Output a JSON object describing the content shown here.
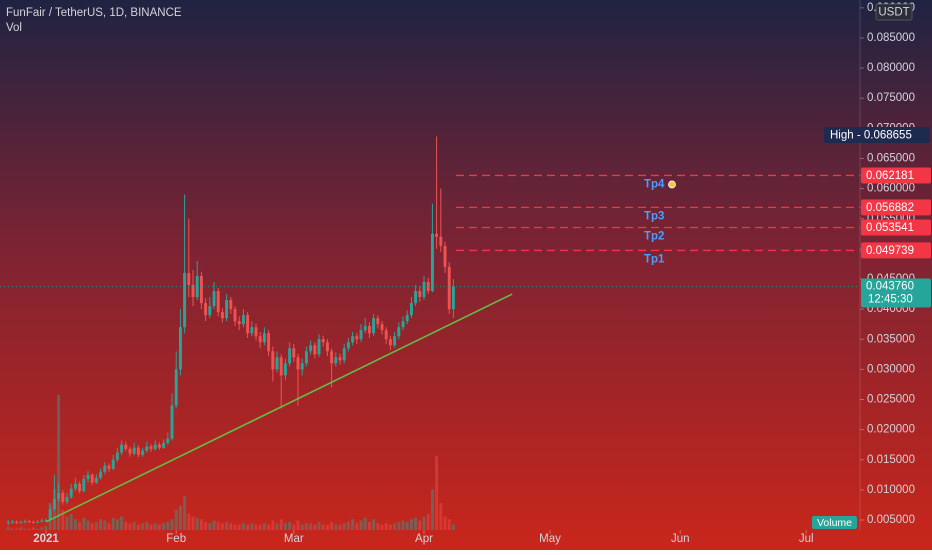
{
  "header": {
    "symbol": "FunFair / TetherUS, 1D, BINANCE",
    "indicator": "Vol",
    "currency": "USDT"
  },
  "chart_data": {
    "type": "candlestick",
    "open": [
      0.0045,
      0.0046,
      0.0047,
      0.0045,
      0.0046,
      0.0048,
      0.0047,
      0.0046,
      0.0047,
      0.0049,
      0.005,
      0.0068,
      0.0085,
      0.0095,
      0.008,
      0.0088,
      0.0102,
      0.011,
      0.0098,
      0.0118,
      0.0125,
      0.0112,
      0.012,
      0.013,
      0.014,
      0.0135,
      0.015,
      0.0162,
      0.0175,
      0.0168,
      0.016,
      0.017,
      0.0158,
      0.0165,
      0.0172,
      0.0168,
      0.0175,
      0.017,
      0.0178,
      0.0185,
      0.024,
      0.03,
      0.037,
      0.046,
      0.044,
      0.042,
      0.0455,
      0.041,
      0.039,
      0.0405,
      0.043,
      0.0395,
      0.0385,
      0.0415,
      0.04,
      0.038,
      0.0375,
      0.039,
      0.036,
      0.037,
      0.0355,
      0.0345,
      0.036,
      0.033,
      0.03,
      0.032,
      0.029,
      0.031,
      0.0335,
      0.032,
      0.03,
      0.031,
      0.033,
      0.034,
      0.0325,
      0.035,
      0.0345,
      0.033,
      0.031,
      0.032,
      0.0315,
      0.0335,
      0.0345,
      0.0355,
      0.035,
      0.0365,
      0.0372,
      0.036,
      0.0385,
      0.0375,
      0.0365,
      0.035,
      0.034,
      0.0355,
      0.037,
      0.038,
      0.039,
      0.041,
      0.043,
      0.042,
      0.0445,
      0.043,
      0.0525,
      0.052,
      0.0505,
      0.047,
      0.04
    ],
    "high": [
      0.005,
      0.005,
      0.0049,
      0.0049,
      0.0051,
      0.005,
      0.0049,
      0.005,
      0.0052,
      0.0053,
      0.0075,
      0.0125,
      0.011,
      0.01,
      0.0095,
      0.011,
      0.012,
      0.0114,
      0.0125,
      0.0132,
      0.0128,
      0.0126,
      0.0136,
      0.0146,
      0.0144,
      0.0158,
      0.017,
      0.0182,
      0.018,
      0.0172,
      0.0178,
      0.0174,
      0.017,
      0.018,
      0.0176,
      0.0182,
      0.0179,
      0.0184,
      0.0195,
      0.026,
      0.033,
      0.04,
      0.059,
      0.055,
      0.0465,
      0.048,
      0.0462,
      0.0418,
      0.042,
      0.0445,
      0.0435,
      0.0402,
      0.0425,
      0.042,
      0.0405,
      0.0388,
      0.04,
      0.0395,
      0.038,
      0.0376,
      0.0362,
      0.037,
      0.0365,
      0.0338,
      0.033,
      0.0325,
      0.0318,
      0.0345,
      0.0342,
      0.0326,
      0.0318,
      0.0338,
      0.0348,
      0.0345,
      0.0358,
      0.0356,
      0.035,
      0.0335,
      0.0328,
      0.0326,
      0.0342,
      0.0352,
      0.0362,
      0.036,
      0.0375,
      0.0385,
      0.0378,
      0.0392,
      0.039,
      0.038,
      0.037,
      0.0356,
      0.0362,
      0.0378,
      0.0388,
      0.0398,
      0.042,
      0.044,
      0.0438,
      0.0455,
      0.0452,
      0.0575,
      0.068655,
      0.06,
      0.0512,
      0.0478,
      0.045
    ],
    "low": [
      0.0042,
      0.0044,
      0.0043,
      0.0044,
      0.0045,
      0.0045,
      0.0044,
      0.0045,
      0.0046,
      0.0047,
      0.0049,
      0.0065,
      0.008,
      0.0075,
      0.0076,
      0.0085,
      0.0098,
      0.0094,
      0.0096,
      0.0112,
      0.0108,
      0.011,
      0.0117,
      0.0126,
      0.013,
      0.0133,
      0.0146,
      0.0158,
      0.0164,
      0.0155,
      0.0157,
      0.0154,
      0.0155,
      0.0162,
      0.0163,
      0.0165,
      0.0166,
      0.0168,
      0.0175,
      0.0182,
      0.0235,
      0.029,
      0.036,
      0.042,
      0.0405,
      0.0415,
      0.04,
      0.038,
      0.0385,
      0.04,
      0.0388,
      0.0378,
      0.038,
      0.0392,
      0.0372,
      0.0365,
      0.037,
      0.0352,
      0.0355,
      0.0348,
      0.0335,
      0.034,
      0.0322,
      0.028,
      0.0295,
      0.0235,
      0.0282,
      0.0305,
      0.0312,
      0.024,
      0.029,
      0.0305,
      0.0325,
      0.0318,
      0.032,
      0.0338,
      0.0322,
      0.027,
      0.0305,
      0.0308,
      0.031,
      0.033,
      0.034,
      0.0342,
      0.0346,
      0.036,
      0.0352,
      0.0356,
      0.0368,
      0.0358,
      0.0342,
      0.0332,
      0.0336,
      0.035,
      0.0365,
      0.0375,
      0.0385,
      0.0405,
      0.0412,
      0.0415,
      0.0425,
      0.0428,
      0.05,
      0.0495,
      0.046,
      0.0392,
      0.0385
    ],
    "close": [
      0.0046,
      0.0047,
      0.0045,
      0.0046,
      0.0048,
      0.0047,
      0.0046,
      0.0047,
      0.0049,
      0.005,
      0.0068,
      0.0085,
      0.0095,
      0.008,
      0.0088,
      0.0102,
      0.011,
      0.0098,
      0.0118,
      0.0125,
      0.0112,
      0.012,
      0.013,
      0.014,
      0.0135,
      0.015,
      0.0162,
      0.0175,
      0.0168,
      0.016,
      0.017,
      0.0158,
      0.0165,
      0.0172,
      0.0168,
      0.0175,
      0.017,
      0.0178,
      0.0185,
      0.024,
      0.03,
      0.037,
      0.046,
      0.044,
      0.042,
      0.0455,
      0.041,
      0.039,
      0.0405,
      0.043,
      0.0395,
      0.0385,
      0.0415,
      0.04,
      0.038,
      0.0375,
      0.039,
      0.036,
      0.037,
      0.0355,
      0.0345,
      0.036,
      0.033,
      0.03,
      0.032,
      0.029,
      0.031,
      0.0335,
      0.032,
      0.03,
      0.031,
      0.033,
      0.034,
      0.0325,
      0.035,
      0.0345,
      0.033,
      0.031,
      0.032,
      0.0315,
      0.0335,
      0.0345,
      0.0355,
      0.035,
      0.0365,
      0.0372,
      0.036,
      0.0385,
      0.0375,
      0.0365,
      0.035,
      0.034,
      0.0355,
      0.037,
      0.038,
      0.039,
      0.041,
      0.043,
      0.042,
      0.0445,
      0.043,
      0.0525,
      0.052,
      0.0505,
      0.047,
      0.04,
      0.04376
    ],
    "volume": [
      2,
      1,
      1,
      2,
      1,
      1,
      2,
      1,
      2,
      3,
      20,
      30,
      100,
      15,
      10,
      12,
      8,
      6,
      9,
      7,
      5,
      6,
      8,
      7,
      5,
      9,
      8,
      10,
      6,
      5,
      6,
      4,
      5,
      6,
      4,
      5,
      4,
      5,
      6,
      8,
      15,
      18,
      25,
      12,
      10,
      9,
      8,
      6,
      5,
      7,
      6,
      5,
      6,
      5,
      4,
      4,
      5,
      4,
      5,
      4,
      4,
      5,
      4,
      7,
      5,
      8,
      5,
      6,
      4,
      7,
      4,
      5,
      5,
      4,
      6,
      4,
      4,
      6,
      4,
      4,
      5,
      6,
      8,
      5,
      7,
      9,
      6,
      8,
      5,
      4,
      5,
      4,
      5,
      6,
      7,
      6,
      8,
      9,
      7,
      10,
      12,
      30,
      55,
      20,
      10,
      8,
      4
    ],
    "up_color": "#26a69a",
    "down_color": "#ef5350",
    "ylim": [
      0.00334,
      0.0913
    ],
    "yticks": [
      {
        "value": 0.005,
        "label": "0.005000"
      },
      {
        "value": 0.01,
        "label": "0.010000"
      },
      {
        "value": 0.015,
        "label": "0.015000"
      },
      {
        "value": 0.02,
        "label": "0.020000"
      },
      {
        "value": 0.025,
        "label": "0.025000"
      },
      {
        "value": 0.03,
        "label": "0.030000"
      },
      {
        "value": 0.035,
        "label": "0.035000"
      },
      {
        "value": 0.04,
        "label": "0.040000"
      },
      {
        "value": 0.045,
        "label": "0.045000"
      },
      {
        "value": 0.05,
        "label": "0.050000"
      },
      {
        "value": 0.055,
        "label": "0.055000"
      },
      {
        "value": 0.06,
        "label": "0.060000"
      },
      {
        "value": 0.065,
        "label": "0.065000"
      },
      {
        "value": 0.07,
        "label": "0.070000"
      },
      {
        "value": 0.075,
        "label": "0.075000"
      },
      {
        "value": 0.08,
        "label": "0.080000"
      },
      {
        "value": 0.085,
        "label": "0.085000"
      },
      {
        "value": 0.09,
        "label": "0.090000"
      }
    ],
    "xlim": [
      -1.95,
      202.8
    ],
    "xticks": [
      {
        "value": 9,
        "label": "2021"
      },
      {
        "value": 40,
        "label": "Feb"
      },
      {
        "value": 68,
        "label": "Mar"
      },
      {
        "value": 99,
        "label": "Apr"
      },
      {
        "value": 129,
        "label": "May"
      },
      {
        "value": 160,
        "label": "Jun"
      },
      {
        "value": 190,
        "label": "Jul"
      }
    ],
    "high_label": "High - 0.068655",
    "last_price": {
      "value": 0.04376,
      "label": "0.043760"
    },
    "countdown": "12:45:30",
    "volume_label": "Volume",
    "levels": [
      {
        "name": "Tp4",
        "value": 0.062181
      },
      {
        "name": "Tp3",
        "value": 0.056882
      },
      {
        "name": "Tp2",
        "value": 0.053541
      },
      {
        "name": "Tp1",
        "value": 0.049739
      }
    ],
    "level_color": "#f23645",
    "trendline": {
      "x": [
        9,
        120
      ],
      "y": [
        0.0047,
        0.0425
      ],
      "color": "#66bb46"
    }
  }
}
